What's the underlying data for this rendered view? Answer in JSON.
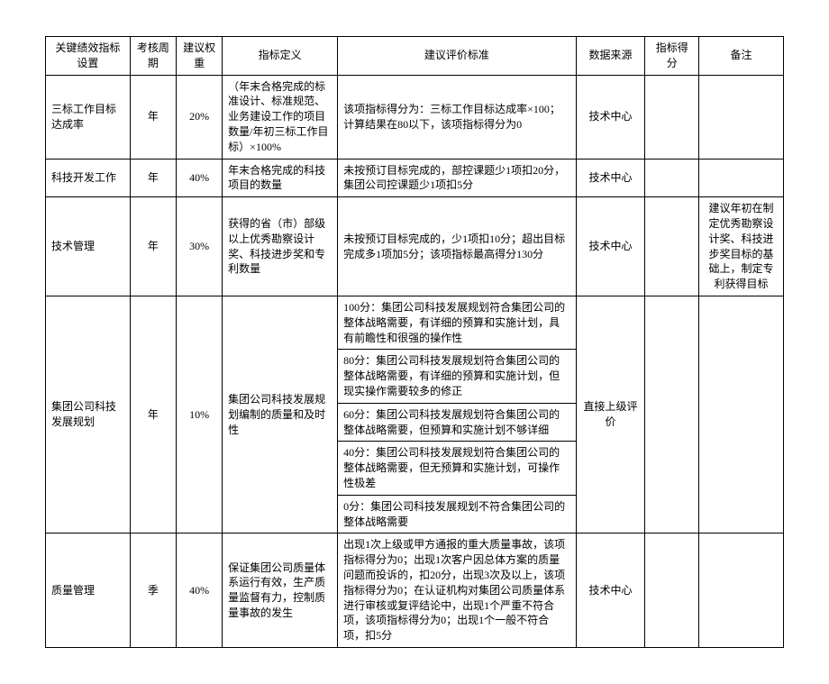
{
  "headers": {
    "name": "关键绩效指标设置",
    "cycle": "考核周期",
    "weight": "建议权重",
    "definition": "指标定义",
    "criteria": "建议评价标准",
    "source": "数据来源",
    "score": "指标得分",
    "note": "备注"
  },
  "rows": [
    {
      "name": "三标工作目标达成率",
      "cycle": "年",
      "weight": "20%",
      "definition": "（年末合格完成的标准设计、标准规范、业务建设工作的项目数量/年初三标工作目标）×100%",
      "criteria": [
        "该项指标得分为：三标工作目标达成率×100；计算结果在80以下，该项指标得分为0"
      ],
      "source": "技术中心",
      "score": "",
      "note": ""
    },
    {
      "name": "科技开发工作",
      "cycle": "年",
      "weight": "40%",
      "definition": "年末合格完成的科技项目的数量",
      "criteria": [
        "未按预订目标完成的，部控课题少1项扣20分，集团公司控课题少1项扣5分"
      ],
      "source": "技术中心",
      "score": "",
      "note": ""
    },
    {
      "name": "技术管理",
      "cycle": "年",
      "weight": "30%",
      "definition": "获得的省（市）部级以上优秀勘察设计奖、科技进步奖和专利数量",
      "criteria": [
        "未按预订目标完成的，少1项扣10分；超出目标完成多1项加5分；该项指标最高得分130分"
      ],
      "source": "技术中心",
      "score": "",
      "note": "建议年初在制定优秀勘察设计奖、科技进步奖目标的基础上，制定专利获得目标"
    },
    {
      "name": "集团公司科技发展规划",
      "cycle": "年",
      "weight": "10%",
      "definition": "集团公司科技发展规划编制的质量和及时性",
      "criteria": [
        "100分：集团公司科技发展规划符合集团公司的整体战略需要，有详细的预算和实施计划，具有前瞻性和很强的操作性",
        "80分：集团公司科技发展规划符合集团公司的整体战略需要，有详细的预算和实施计划，但现实操作需要较多的修正",
        "60分：集团公司科技发展规划符合集团公司的整体战略需要，但预算和实施计划不够详细",
        "40分：集团公司科技发展规划符合集团公司的整体战略需要，但无预算和实施计划，可操作性极差",
        "0分：集团公司科技发展规划不符合集团公司的整体战略需要"
      ],
      "source": "直接上级评价",
      "score": "",
      "note": ""
    },
    {
      "name": "质量管理",
      "cycle": "季",
      "weight": "40%",
      "definition": "保证集团公司质量体系运行有效，生产质量监督有力，控制质量事故的发生",
      "criteria": [
        "出现1次上级或甲方通报的重大质量事故，该项指标得分为0；出现1次客户因总体方案的质量问题而投诉的，扣20分，出现3次及以上，该项指标得分为0；在认证机构对集团公司质量体系进行审核或复评结论中，出现1个严重不符合项，该项指标得分为0；出现1个一般不符合项，扣5分"
      ],
      "source": "技术中心",
      "score": "",
      "note": ""
    }
  ]
}
